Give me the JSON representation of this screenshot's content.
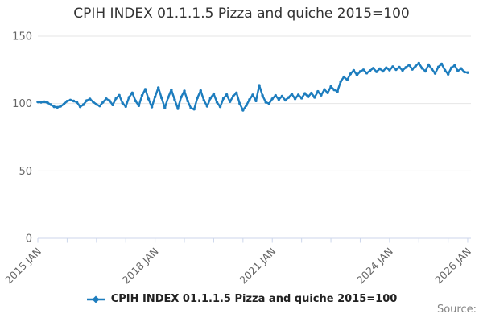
{
  "title": {
    "text": "CPIH INDEX 01.1.1.5 Pizza and quiche 2015=100"
  },
  "legend": {
    "label": "CPIH INDEX 01.1.1.5 Pizza and quiche 2015=100"
  },
  "source": {
    "label": "Source:"
  },
  "colors": {
    "line": "#1d7dbe",
    "grid": "#e6e6e6",
    "axis": "#ccd6eb",
    "tick_label": "#666666",
    "title_text": "#333333",
    "legend_text": "#222222",
    "source_text": "#848484"
  },
  "chart_data": {
    "type": "line",
    "title": "CPIH INDEX 01.1.1.5 Pizza and quiche 2015=100",
    "xlabel": "",
    "ylabel": "",
    "x_start": "2015 JAN",
    "x_end": "2026 JAN",
    "x_frequency": "monthly",
    "x_tick_interval_months": 9,
    "x_labeled_ticks": [
      {
        "label": "2015 JAN",
        "month": 0
      },
      {
        "label": "2018 JAN",
        "month": 36
      },
      {
        "label": "2021 JAN",
        "month": 72
      },
      {
        "label": "2024 JAN",
        "month": 108
      },
      {
        "label": "2026 JAN",
        "month": 132
      }
    ],
    "ylim": [
      0,
      150
    ],
    "y_ticks": [
      0,
      50,
      100,
      150
    ],
    "grid": true,
    "legend_position": "bottom",
    "series": [
      {
        "name": "CPIH INDEX 01.1.1.5 Pizza and quiche 2015=100",
        "color": "#1d7dbe",
        "marker": "diamond",
        "values": [
          101.2,
          101.0,
          101.3,
          100.6,
          99.2,
          97.6,
          97.2,
          98.0,
          99.6,
          101.8,
          102.6,
          101.9,
          101.0,
          97.6,
          99.2,
          102.2,
          103.4,
          101.2,
          99.4,
          98.2,
          101.0,
          103.6,
          102.2,
          99.0,
          103.8,
          106.2,
          100.4,
          97.8,
          104.6,
          108.0,
          102.0,
          98.4,
          106.0,
          110.6,
          103.4,
          97.4,
          105.0,
          111.8,
          104.2,
          96.8,
          104.4,
          110.2,
          103.0,
          96.2,
          104.8,
          109.4,
          102.0,
          96.6,
          95.8,
          104.2,
          109.6,
          102.4,
          98.0,
          104.0,
          107.2,
          101.0,
          97.6,
          103.8,
          106.6,
          101.4,
          105.5,
          108.0,
          100.0,
          95.0,
          98.5,
          103.0,
          106.5,
          102.0,
          113.5,
          106.0,
          101.0,
          100.0,
          103.5,
          106.0,
          103.0,
          105.5,
          102.5,
          104.5,
          107.0,
          103.5,
          106.5,
          104.0,
          107.5,
          105.0,
          107.8,
          104.6,
          109.0,
          106.2,
          110.4,
          108.0,
          112.6,
          110.2,
          109.0,
          116.4,
          119.8,
          117.6,
          122.0,
          124.6,
          121.2,
          123.8,
          125.0,
          122.6,
          124.4,
          126.2,
          123.6,
          125.8,
          124.0,
          126.6,
          124.8,
          127.4,
          125.2,
          127.0,
          124.6,
          126.8,
          128.6,
          125.4,
          127.8,
          130.0,
          126.2,
          124.0,
          128.8,
          125.6,
          122.4,
          127.2,
          129.4,
          124.8,
          121.8,
          126.6,
          128.2,
          124.2,
          126.0,
          123.4,
          123.0
        ]
      }
    ]
  }
}
